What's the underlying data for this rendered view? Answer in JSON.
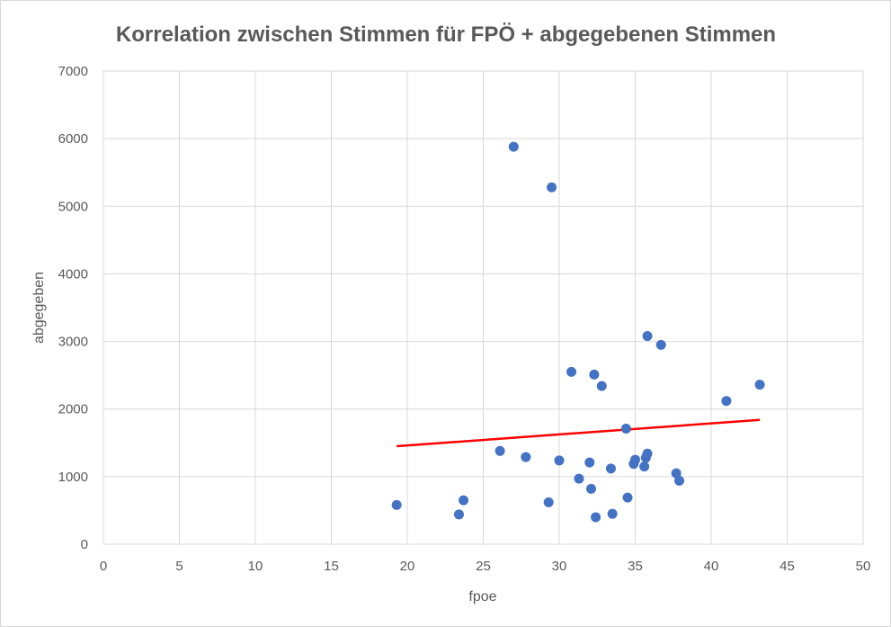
{
  "chart_data": {
    "type": "scatter",
    "title": "Korrelation zwischen Stimmen für FPÖ + abgegebenen Stimmen",
    "xlabel": "fpoe",
    "ylabel": "abgegeben",
    "xlim": [
      0,
      50
    ],
    "ylim": [
      0,
      7000
    ],
    "x_ticks": [
      "0",
      "5",
      "10",
      "15",
      "20",
      "25",
      "30",
      "35",
      "40",
      "45",
      "50"
    ],
    "y_ticks": [
      "0",
      "1000",
      "2000",
      "3000",
      "4000",
      "5000",
      "6000",
      "7000"
    ],
    "grid": true,
    "legend": "none",
    "colors": {
      "points": "#4472c4",
      "trendline": "#ff0000",
      "grid": "#d9d9d9",
      "text": "#595959"
    },
    "points": [
      {
        "x": 19.3,
        "y": 580
      },
      {
        "x": 23.4,
        "y": 440
      },
      {
        "x": 23.7,
        "y": 650
      },
      {
        "x": 26.1,
        "y": 1380
      },
      {
        "x": 27.0,
        "y": 5880
      },
      {
        "x": 27.8,
        "y": 1290
      },
      {
        "x": 29.3,
        "y": 620
      },
      {
        "x": 29.5,
        "y": 5280
      },
      {
        "x": 30.0,
        "y": 1240
      },
      {
        "x": 30.8,
        "y": 2550
      },
      {
        "x": 31.3,
        "y": 970
      },
      {
        "x": 32.0,
        "y": 1210
      },
      {
        "x": 32.1,
        "y": 820
      },
      {
        "x": 32.3,
        "y": 2510
      },
      {
        "x": 32.4,
        "y": 400
      },
      {
        "x": 32.8,
        "y": 2340
      },
      {
        "x": 33.4,
        "y": 1120
      },
      {
        "x": 33.5,
        "y": 450
      },
      {
        "x": 34.4,
        "y": 1710
      },
      {
        "x": 34.5,
        "y": 690
      },
      {
        "x": 34.9,
        "y": 1190
      },
      {
        "x": 35.0,
        "y": 1250
      },
      {
        "x": 35.6,
        "y": 1150
      },
      {
        "x": 35.7,
        "y": 1280
      },
      {
        "x": 35.8,
        "y": 3080
      },
      {
        "x": 35.8,
        "y": 1340
      },
      {
        "x": 36.7,
        "y": 2950
      },
      {
        "x": 37.7,
        "y": 1050
      },
      {
        "x": 37.9,
        "y": 940
      },
      {
        "x": 41.0,
        "y": 2120
      },
      {
        "x": 43.2,
        "y": 2360
      }
    ],
    "trendline": {
      "x": [
        19.3,
        43.2
      ],
      "y": [
        1450,
        1840
      ]
    }
  }
}
